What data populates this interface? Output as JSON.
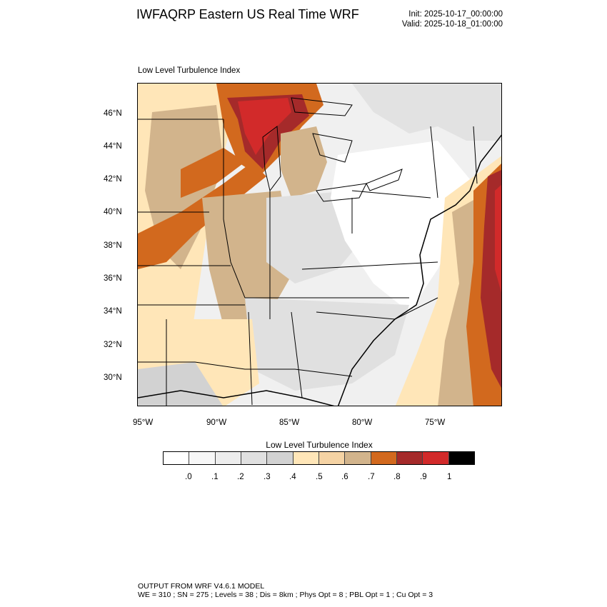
{
  "header": {
    "title": "IWFAQRP Eastern US Real Time WRF",
    "init": "Init: 2025-10-17_00:00:00",
    "valid": "Valid: 2025-10-18_01:00:00"
  },
  "map": {
    "subtitle": "Low Level Turbulence Index",
    "lat_labels": [
      "46°N",
      "44°N",
      "42°N",
      "40°N",
      "38°N",
      "36°N",
      "34°N",
      "32°N",
      "30°N"
    ],
    "lon_labels": [
      "95°W",
      "90°W",
      "85°W",
      "80°W",
      "75°W"
    ]
  },
  "colorbar": {
    "title": "Low Level Turbulence Index",
    "tick_labels": [
      ".0",
      ".1",
      ".2",
      ".3",
      ".4",
      ".5",
      ".6",
      ".7",
      ".8",
      ".9",
      "1"
    ],
    "colors": [
      "#ffffff",
      "#f7f7f7",
      "#ededed",
      "#e0e0e0",
      "#d2d2d2",
      "#ffe6b8",
      "#f5d3a4",
      "#d2b48c",
      "#d2691e",
      "#a52a2a",
      "#d22a2a",
      "#000000"
    ]
  },
  "footer": {
    "line1": "OUTPUT FROM WRF V4.6.1 MODEL",
    "line2": "WE = 310 ; SN = 275 ; Levels = 38 ; Dis = 8km ; Phys Opt = 8 ; PBL Opt = 1 ; Cu Opt = 3"
  }
}
